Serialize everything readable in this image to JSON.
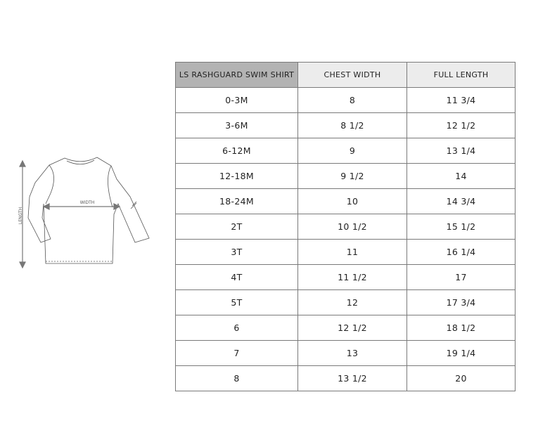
{
  "diagram": {
    "length_label": "LENGTH",
    "width_label": "WIDTH"
  },
  "table": {
    "headers": [
      "LS RASHGUARD SWIM SHIRT",
      "CHEST WIDTH",
      "FULL LENGTH"
    ],
    "rows": [
      [
        "0-3M",
        "8",
        "11 3/4"
      ],
      [
        "3-6M",
        "8 1/2",
        "12 1/2"
      ],
      [
        "6-12M",
        "9",
        "13 1/4"
      ],
      [
        "12-18M",
        "9 1/2",
        "14"
      ],
      [
        "18-24M",
        "10",
        "14 3/4"
      ],
      [
        "2T",
        "10 1/2",
        "15 1/2"
      ],
      [
        "3T",
        "11",
        "16 1/4"
      ],
      [
        "4T",
        "11 1/2",
        "17"
      ],
      [
        "5T",
        "12",
        "17 3/4"
      ],
      [
        "6",
        "12 1/2",
        "18 1/2"
      ],
      [
        "7",
        "13",
        "19 1/4"
      ],
      [
        "8",
        "13 1/2",
        "20"
      ]
    ]
  },
  "colors": {
    "header_primary": "#b3b3b3",
    "header_secondary": "#ececec",
    "border": "#7a7a7a"
  }
}
